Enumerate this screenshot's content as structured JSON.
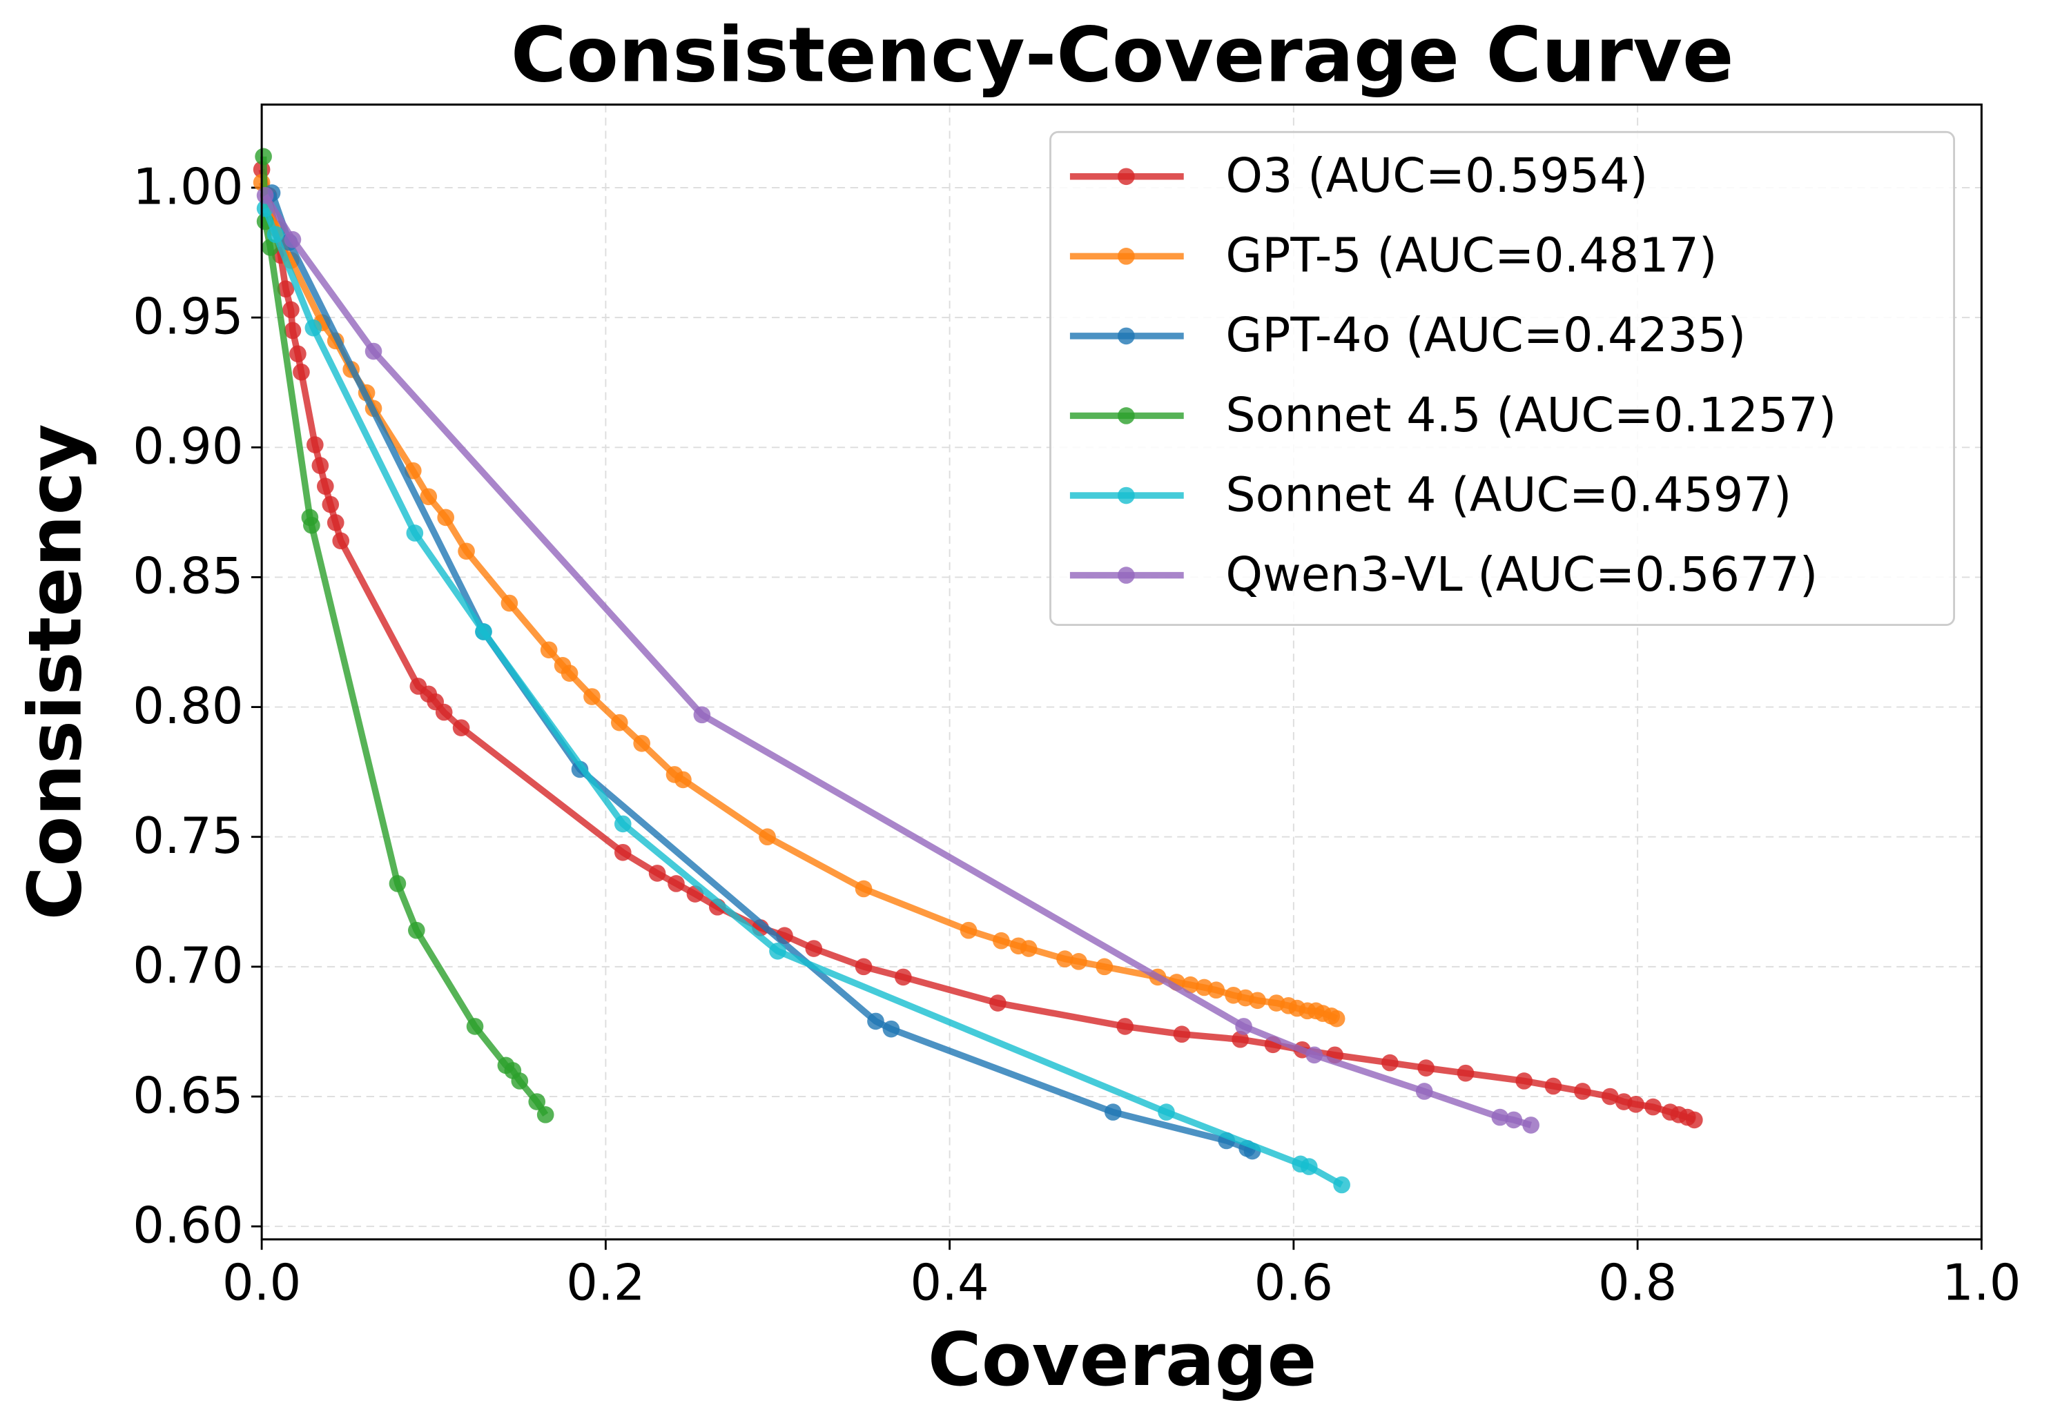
{
  "chart_data": {
    "type": "line",
    "title": "Consistency-Coverage Curve",
    "x_label": "Coverage",
    "y_label": "Consistency",
    "xlim": [
      0,
      1
    ],
    "ylim": [
      0.595,
      1.032
    ],
    "xticks": [
      {
        "value": 0,
        "label": "0.0"
      },
      0.2,
      0.4,
      0.6,
      0.8,
      {
        "value": 1,
        "label": "1.0"
      }
    ],
    "yticks": [
      {
        "value": 0.6,
        "label": "0.60"
      },
      0.65,
      {
        "value": 0.7,
        "label": "0.70"
      },
      0.75,
      {
        "value": 0.8,
        "label": "0.80"
      },
      0.85,
      {
        "value": 0.9,
        "label": "0.90"
      },
      0.95,
      {
        "value": 1,
        "label": "1.00"
      }
    ],
    "grid": true,
    "legend": "upper right",
    "series": [
      {
        "name": "O3 (AUC=0.5954)",
        "color": "#d62728",
        "x": [
          0.0,
          0.004,
          0.011,
          0.014,
          0.017,
          0.018,
          0.021,
          0.023,
          0.031,
          0.034,
          0.037,
          0.04,
          0.043,
          0.046,
          0.091,
          0.097,
          0.101,
          0.106,
          0.116,
          0.21,
          0.23,
          0.241,
          0.252,
          0.265,
          0.29,
          0.304,
          0.321,
          0.35,
          0.373,
          0.428,
          0.502,
          0.535,
          0.569,
          0.588,
          0.605,
          0.624,
          0.656,
          0.677,
          0.7,
          0.734,
          0.751,
          0.768,
          0.784,
          0.792,
          0.799,
          0.809,
          0.819,
          0.824,
          0.829,
          0.833
        ],
        "values": [
          1.007,
          0.997,
          0.974,
          0.961,
          0.953,
          0.945,
          0.936,
          0.929,
          0.901,
          0.893,
          0.885,
          0.878,
          0.871,
          0.864,
          0.808,
          0.805,
          0.802,
          0.798,
          0.792,
          0.744,
          0.736,
          0.732,
          0.728,
          0.723,
          0.715,
          0.712,
          0.707,
          0.7,
          0.696,
          0.686,
          0.677,
          0.674,
          0.672,
          0.67,
          0.668,
          0.666,
          0.663,
          0.661,
          0.659,
          0.656,
          0.654,
          0.652,
          0.65,
          0.648,
          0.647,
          0.646,
          0.644,
          0.643,
          0.642,
          0.641
        ]
      },
      {
        "name": "GPT-5 (AUC=0.4817)",
        "color": "#ff7f0e",
        "x": [
          0.0,
          0.009,
          0.017,
          0.035,
          0.043,
          0.052,
          0.061,
          0.065,
          0.088,
          0.097,
          0.107,
          0.119,
          0.144,
          0.167,
          0.175,
          0.179,
          0.192,
          0.208,
          0.221,
          0.24,
          0.245,
          0.294,
          0.35,
          0.411,
          0.43,
          0.44,
          0.446,
          0.467,
          0.475,
          0.49,
          0.521,
          0.532,
          0.54,
          0.548,
          0.555,
          0.565,
          0.572,
          0.579,
          0.59,
          0.597,
          0.602,
          0.608,
          0.613,
          0.617,
          0.622,
          0.625
        ],
        "values": [
          1.002,
          0.984,
          0.972,
          0.948,
          0.941,
          0.93,
          0.921,
          0.915,
          0.891,
          0.881,
          0.873,
          0.86,
          0.84,
          0.822,
          0.816,
          0.813,
          0.804,
          0.794,
          0.786,
          0.774,
          0.772,
          0.75,
          0.73,
          0.714,
          0.71,
          0.708,
          0.707,
          0.703,
          0.702,
          0.7,
          0.696,
          0.694,
          0.693,
          0.692,
          0.691,
          0.689,
          0.688,
          0.687,
          0.686,
          0.685,
          0.684,
          0.683,
          0.683,
          0.682,
          0.681,
          0.68
        ]
      },
      {
        "name": "GPT-4o (AUC=0.4235)",
        "color": "#1f77b4",
        "x": [
          0.006,
          0.016,
          0.129,
          0.185,
          0.357,
          0.366,
          0.495,
          0.561,
          0.573,
          0.576
        ],
        "values": [
          0.998,
          0.979,
          0.829,
          0.776,
          0.679,
          0.676,
          0.644,
          0.633,
          0.63,
          0.629
        ]
      },
      {
        "name": "Sonnet 4.5 (AUC=0.1257)",
        "color": "#2ca02c",
        "x": [
          0.001,
          0.002,
          0.005,
          0.028,
          0.029,
          0.079,
          0.09,
          0.124,
          0.142,
          0.146,
          0.15,
          0.16,
          0.165
        ],
        "values": [
          1.012,
          0.987,
          0.977,
          0.873,
          0.87,
          0.732,
          0.714,
          0.677,
          0.662,
          0.66,
          0.656,
          0.648,
          0.643
        ]
      },
      {
        "name": "Sonnet 4 (AUC=0.4597)",
        "color": "#17becf",
        "x": [
          0.002,
          0.008,
          0.03,
          0.089,
          0.129,
          0.21,
          0.3,
          0.526,
          0.604,
          0.609,
          0.628
        ],
        "values": [
          0.992,
          0.982,
          0.946,
          0.867,
          0.829,
          0.755,
          0.706,
          0.644,
          0.624,
          0.623,
          0.616
        ]
      },
      {
        "name": "Qwen3-VL (AUC=0.5677)",
        "color": "#9467bd",
        "x": [
          0.002,
          0.018,
          0.065,
          0.256,
          0.571,
          0.612,
          0.676,
          0.72,
          0.728,
          0.738
        ],
        "values": [
          0.997,
          0.98,
          0.937,
          0.797,
          0.677,
          0.666,
          0.652,
          0.642,
          0.641,
          0.639
        ]
      }
    ]
  }
}
